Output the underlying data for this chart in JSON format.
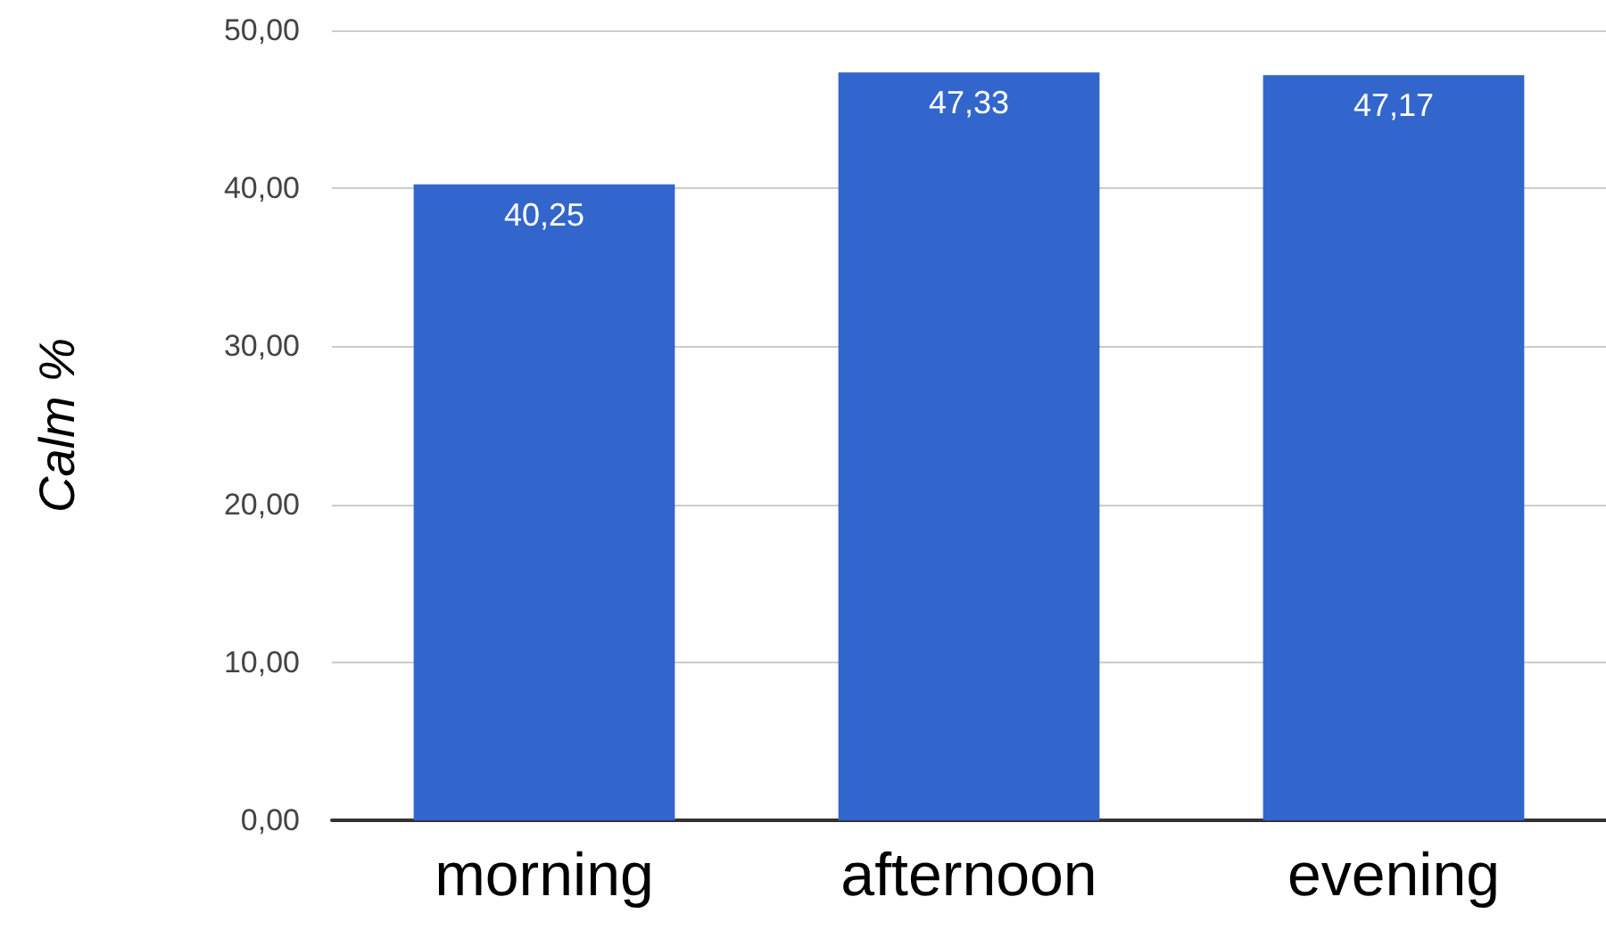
{
  "chart_data": {
    "type": "bar",
    "ylabel": "Calm %",
    "categories": [
      "morning",
      "afternoon",
      "evening"
    ],
    "values": [
      40.25,
      47.33,
      47.17
    ],
    "color": "#3366cc",
    "value_labels": [
      "40,25",
      "47,33",
      "47,17"
    ],
    "ylim": [
      0,
      50
    ],
    "yticks": [
      {
        "value": 0,
        "label": "0,00"
      },
      {
        "value": 10,
        "label": "10,00"
      },
      {
        "value": 20,
        "label": "20,00"
      },
      {
        "value": 30,
        "label": "30,00"
      },
      {
        "value": 40,
        "label": "40,00"
      },
      {
        "value": 50,
        "label": "50,00"
      }
    ],
    "grid": "y"
  }
}
